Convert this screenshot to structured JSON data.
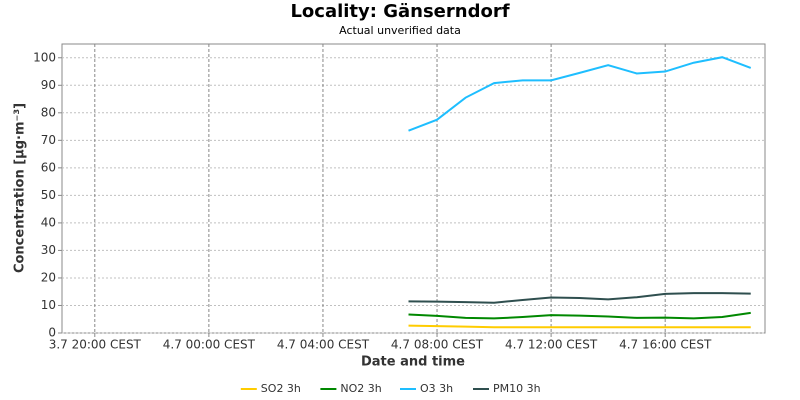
{
  "chart_data": {
    "type": "line",
    "title": "Locality: Gänserndorf",
    "subtitle": "Actual unverified data",
    "x_label": "Date and time",
    "y_label": "Concentration [µg·m⁻³]",
    "x": [
      31,
      32,
      33,
      34,
      35,
      36,
      37,
      38,
      39,
      40,
      41,
      42,
      43
    ],
    "xlim": [
      18.85,
      43.5
    ],
    "xticks": [
      {
        "value": 20,
        "label": "3.7 20:00 CEST"
      },
      {
        "value": 24,
        "label": "4.7 00:00 CEST"
      },
      {
        "value": 28,
        "label": "4.7 04:00 CEST"
      },
      {
        "value": 32,
        "label": "4.7 08:00 CEST"
      },
      {
        "value": 36,
        "label": "4.7 12:00 CEST"
      },
      {
        "value": 40,
        "label": "4.7 16:00 CEST"
      }
    ],
    "ylim": [
      0,
      105
    ],
    "yticks": [
      0,
      10,
      20,
      30,
      40,
      50,
      60,
      70,
      80,
      90,
      100
    ],
    "grid": true,
    "legend": "bottom",
    "series": [
      {
        "name": "SO2 3h",
        "color": "#ffcc00",
        "values": [
          2.7,
          2.5,
          2.3,
          2.1,
          2.1,
          2.1,
          2.1,
          2.1,
          2.1,
          2.1,
          2.1,
          2.1,
          2.1
        ]
      },
      {
        "name": "NO2 3h",
        "color": "#008800",
        "values": [
          6.7,
          6.2,
          5.5,
          5.3,
          5.8,
          6.5,
          6.3,
          6.0,
          5.5,
          5.6,
          5.3,
          5.8,
          7.3
        ]
      },
      {
        "name": "O3 3h",
        "color": "#1ebeff",
        "values": [
          73.5,
          77.5,
          85.5,
          90.8,
          91.8,
          91.8,
          94.5,
          97.3,
          94.3,
          95.0,
          98.2,
          100.2,
          96.3
        ]
      },
      {
        "name": "PM10 3h",
        "color": "#2f4f4f",
        "values": [
          11.5,
          11.4,
          11.2,
          11.0,
          12.0,
          12.9,
          12.7,
          12.2,
          13.0,
          14.2,
          14.5,
          14.5,
          14.3
        ]
      }
    ]
  }
}
